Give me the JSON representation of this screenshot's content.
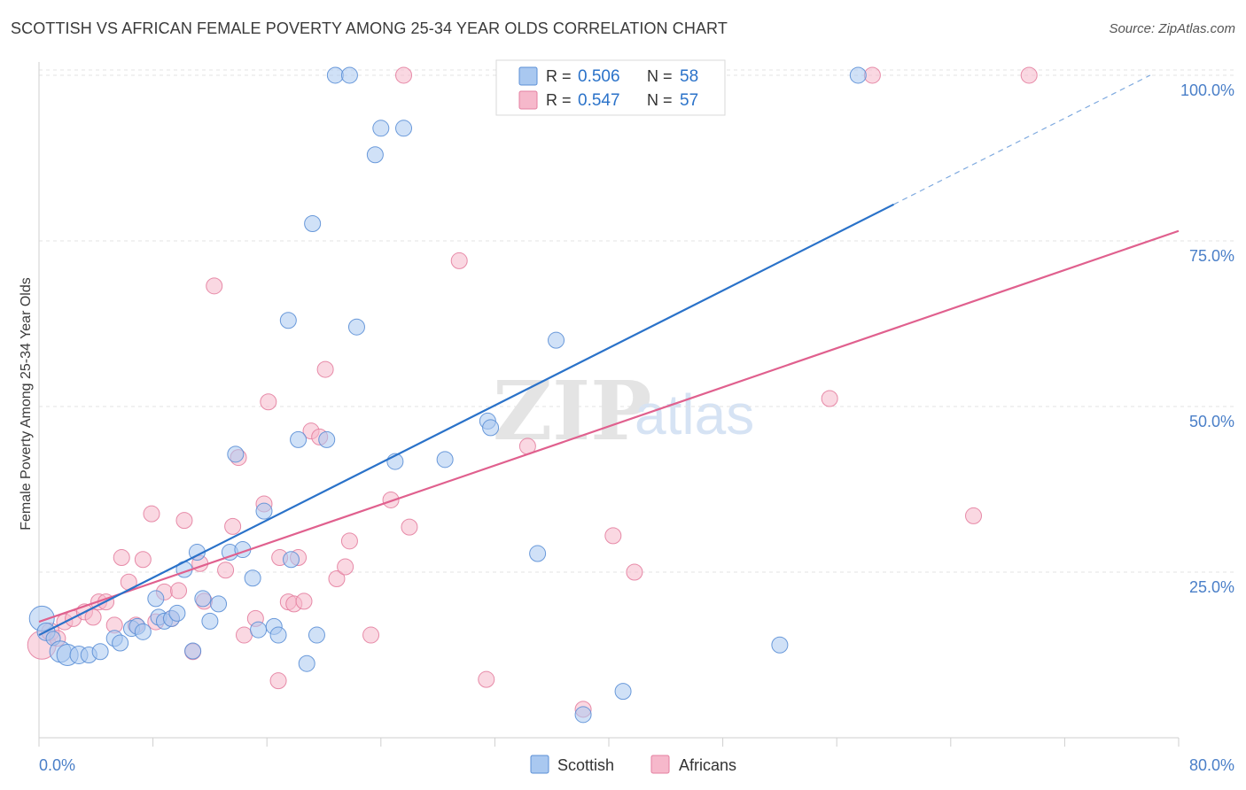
{
  "header": {
    "title": "SCOTTISH VS AFRICAN FEMALE POVERTY AMONG 25-34 YEAR OLDS CORRELATION CHART",
    "source": "Source: ZipAtlas.com"
  },
  "watermark": {
    "part1": "ZIP",
    "part2": "atlas"
  },
  "colors": {
    "scottish_fill": "#a9c8f0",
    "scottish_stroke": "#5b8fd6",
    "scottish_line": "#2a72c9",
    "africans_fill": "#f6b8cb",
    "africans_stroke": "#e47fa0",
    "africans_line": "#e0608e",
    "axis_label": "#4a7fc8",
    "grid": "#e3e3e3"
  },
  "legend_box": {
    "rows": [
      {
        "r_label": "R =",
        "r_value": "0.506",
        "n_label": "N =",
        "n_value": "58"
      },
      {
        "r_label": "R =",
        "r_value": "0.547",
        "n_label": "N =",
        "n_value": "57"
      }
    ]
  },
  "chart_data": {
    "type": "scatter",
    "title": "SCOTTISH VS AFRICAN FEMALE POVERTY AMONG 25-34 YEAR OLDS CORRELATION CHART",
    "xlabel": "",
    "ylabel": "Female Poverty Among 25-34 Year Olds",
    "xlim": [
      0,
      80
    ],
    "ylim": [
      0,
      102
    ],
    "x_tick_labels": [
      "0.0%",
      "80.0%"
    ],
    "y_ticks": [
      25,
      50,
      75,
      100
    ],
    "y_tick_labels": [
      "25.0%",
      "50.0%",
      "75.0%",
      "100.0%"
    ],
    "grid": true,
    "legend_position": "bottom-center",
    "series": [
      {
        "name": "Scottish",
        "r": 0.506,
        "n": 58,
        "trend": {
          "x0": 0,
          "y0": 15.5,
          "x1": 60,
          "y1": 80.5,
          "dashed_to_x": 78,
          "dashed_to_y": 100
        },
        "points": [
          [
            0.2,
            18,
            14
          ],
          [
            0.5,
            16,
            10
          ],
          [
            1,
            15,
            8
          ],
          [
            1.5,
            13,
            12
          ],
          [
            2,
            12.5,
            12
          ],
          [
            2.8,
            12.5,
            10
          ],
          [
            3.5,
            12.5,
            9
          ],
          [
            4.3,
            13,
            9
          ],
          [
            5.3,
            15,
            9
          ],
          [
            5.7,
            14.3,
            9
          ],
          [
            6.5,
            16.5,
            9
          ],
          [
            6.9,
            16.8,
            9
          ],
          [
            7.3,
            16,
            9
          ],
          [
            8.2,
            21,
            9
          ],
          [
            8.4,
            18.2,
            9
          ],
          [
            8.8,
            17.6,
            9
          ],
          [
            9.3,
            18,
            9
          ],
          [
            9.7,
            18.8,
            9
          ],
          [
            10.2,
            25.4,
            9
          ],
          [
            10.8,
            13.1,
            9
          ],
          [
            11.1,
            28,
            9
          ],
          [
            11.5,
            21,
            9
          ],
          [
            12,
            17.6,
            9
          ],
          [
            12.6,
            20.2,
            9
          ],
          [
            13.4,
            28,
            9
          ],
          [
            13.8,
            42.8,
            9
          ],
          [
            14.3,
            28.4,
            9
          ],
          [
            15,
            24.1,
            9
          ],
          [
            15.4,
            16.3,
            9
          ],
          [
            15.8,
            34.2,
            9
          ],
          [
            16.5,
            16.8,
            9
          ],
          [
            16.8,
            15.5,
            9
          ],
          [
            17.5,
            63,
            9
          ],
          [
            17.7,
            26.9,
            9
          ],
          [
            18.2,
            45,
            9
          ],
          [
            18.8,
            11.2,
            9
          ],
          [
            19.2,
            77.6,
            9
          ],
          [
            19.5,
            15.5,
            9
          ],
          [
            20.2,
            45,
            9
          ],
          [
            20.8,
            100,
            9
          ],
          [
            21.8,
            100,
            9
          ],
          [
            22.3,
            62,
            9
          ],
          [
            23.6,
            88,
            9
          ],
          [
            24,
            92,
            9
          ],
          [
            25,
            41.7,
            9
          ],
          [
            25.6,
            92,
            9
          ],
          [
            28.5,
            42,
            9
          ],
          [
            31.5,
            47.8,
            9
          ],
          [
            31.7,
            46.8,
            9
          ],
          [
            35,
            27.8,
            9
          ],
          [
            36.3,
            60,
            9
          ],
          [
            38.2,
            3.5,
            9
          ],
          [
            41,
            7,
            9
          ],
          [
            43,
            100,
            9
          ],
          [
            52,
            14,
            9
          ],
          [
            57.5,
            100,
            9
          ]
        ]
      },
      {
        "name": "Africans",
        "r": 0.547,
        "n": 57,
        "trend": {
          "x0": 0,
          "y0": 17.5,
          "x1": 80,
          "y1": 76.5
        },
        "points": [
          [
            0.2,
            14,
            16
          ],
          [
            0.8,
            16,
            10
          ],
          [
            1.3,
            15,
            9
          ],
          [
            1.8,
            17.5,
            9
          ],
          [
            2.4,
            18,
            9
          ],
          [
            3.2,
            19,
            9
          ],
          [
            3.8,
            18.2,
            9
          ],
          [
            4.2,
            20.5,
            9
          ],
          [
            4.7,
            20.5,
            9
          ],
          [
            5.3,
            17,
            9
          ],
          [
            5.8,
            27.2,
            9
          ],
          [
            6.3,
            23.5,
            9
          ],
          [
            6.8,
            17,
            9
          ],
          [
            7.3,
            26.9,
            9
          ],
          [
            7.9,
            33.8,
            9
          ],
          [
            8.2,
            17.5,
            9
          ],
          [
            8.8,
            22,
            9
          ],
          [
            9.3,
            18,
            9
          ],
          [
            9.8,
            22.2,
            9
          ],
          [
            10.2,
            32.8,
            9
          ],
          [
            10.8,
            13,
            9
          ],
          [
            11.3,
            26.3,
            9
          ],
          [
            11.6,
            20.6,
            9
          ],
          [
            12.3,
            68.2,
            9
          ],
          [
            13.1,
            25.3,
            9
          ],
          [
            13.6,
            31.9,
            9
          ],
          [
            14,
            42.3,
            9
          ],
          [
            14.4,
            15.5,
            9
          ],
          [
            15.2,
            18,
            9
          ],
          [
            15.8,
            35.3,
            9
          ],
          [
            16.1,
            50.7,
            9
          ],
          [
            16.9,
            27.2,
            9
          ],
          [
            17.5,
            20.5,
            9
          ],
          [
            17.9,
            20.2,
            9
          ],
          [
            18.2,
            27.2,
            9
          ],
          [
            18.6,
            20.6,
            9
          ],
          [
            19.1,
            46.3,
            9
          ],
          [
            19.7,
            45.4,
            9
          ],
          [
            20.1,
            55.6,
            9
          ],
          [
            20.9,
            24,
            9
          ],
          [
            21.5,
            25.8,
            9
          ],
          [
            21.8,
            29.7,
            9
          ],
          [
            23.3,
            15.5,
            9
          ],
          [
            24.7,
            35.9,
            9
          ],
          [
            25.6,
            100,
            9
          ],
          [
            26,
            31.8,
            9
          ],
          [
            29.5,
            72,
            9
          ],
          [
            31.4,
            8.8,
            9
          ],
          [
            34.3,
            44,
            9
          ],
          [
            38.2,
            4.3,
            9
          ],
          [
            40.3,
            30.5,
            9
          ],
          [
            41.8,
            25,
            9
          ],
          [
            55.5,
            51.2,
            9
          ],
          [
            58.5,
            100,
            9
          ],
          [
            65.6,
            33.5,
            9
          ],
          [
            69.5,
            100,
            9
          ],
          [
            16.8,
            8.6,
            9
          ]
        ]
      }
    ]
  },
  "bottom_legend": {
    "items": [
      "Scottish",
      "Africans"
    ]
  }
}
